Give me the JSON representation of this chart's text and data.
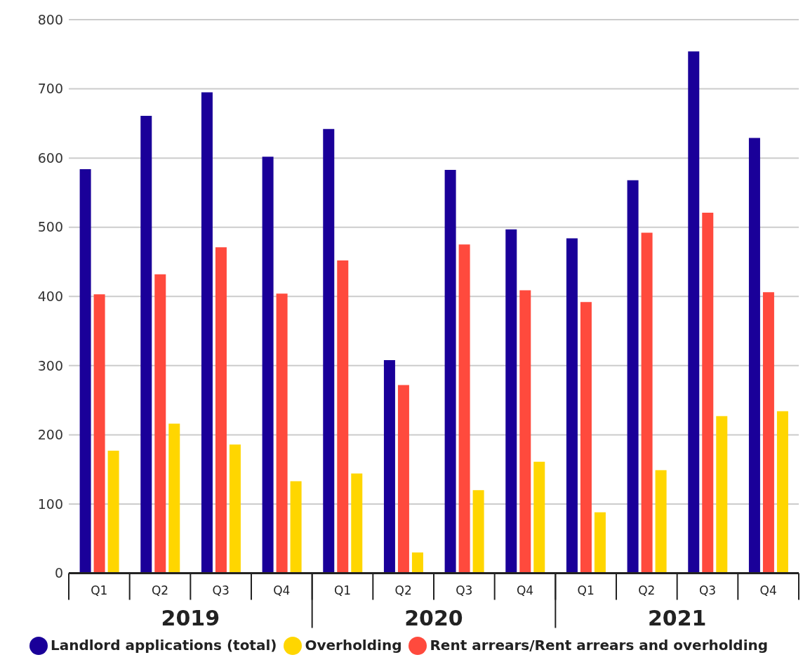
{
  "chart_data": {
    "type": "bar",
    "categories": [
      "Q1",
      "Q2",
      "Q3",
      "Q4",
      "Q1",
      "Q2",
      "Q3",
      "Q4",
      "Q1",
      "Q2",
      "Q3",
      "Q4"
    ],
    "annotations": [
      "2019",
      "2020",
      "2021"
    ],
    "series": [
      {
        "name": "Landlord applications (total)",
        "color": "#1a0099",
        "values": [
          584,
          661,
          695,
          602,
          642,
          308,
          583,
          497,
          484,
          568,
          754,
          629
        ]
      },
      {
        "name": "Rent arrears/Rent arrears and overholding",
        "color": "#ff4a3d",
        "values": [
          403,
          432,
          471,
          404,
          452,
          272,
          475,
          409,
          392,
          492,
          521,
          406
        ]
      },
      {
        "name": "Overholding",
        "color": "#ffd600",
        "values": [
          177,
          216,
          186,
          133,
          144,
          30,
          120,
          161,
          88,
          149,
          227,
          234
        ]
      }
    ],
    "ylim": [
      0,
      800
    ],
    "yticks": [
      0,
      100,
      200,
      300,
      400,
      500,
      600,
      700,
      800
    ],
    "grid": "y",
    "legend": "bottom"
  }
}
